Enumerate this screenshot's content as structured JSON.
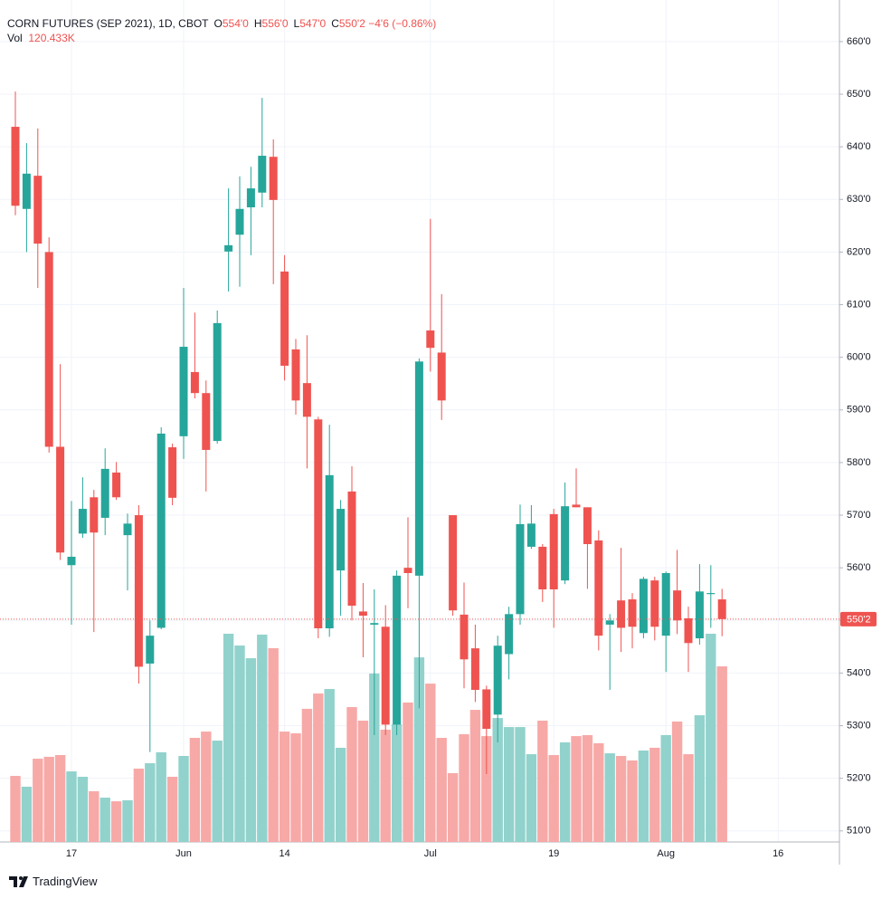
{
  "chart_data": {
    "type": "candlestick",
    "title": "CORN FUTURES (SEP 2021), 1D, CBOT",
    "header": [
      {
        "key": "O",
        "value": "554'0"
      },
      {
        "key": "H",
        "value": "556'0"
      },
      {
        "key": "L",
        "value": "547'0"
      },
      {
        "key": "C",
        "value": "550'2"
      }
    ],
    "change": "−4'6 (−0.86%)",
    "volume_label": "Vol",
    "volume_value": "120.433K",
    "categories": [
      null,
      null,
      null,
      null,
      null,
      "17",
      null,
      null,
      null,
      null,
      null,
      null,
      null,
      null,
      null,
      "Jun",
      null,
      null,
      null,
      null,
      null,
      null,
      null,
      null,
      "14",
      null,
      null,
      null,
      null,
      null,
      null,
      null,
      null,
      null,
      null,
      null,
      null,
      "Jul",
      null,
      null,
      null,
      null,
      null,
      null,
      null,
      null,
      null,
      null,
      "19",
      null,
      null,
      null,
      null,
      null,
      null,
      null,
      null,
      null,
      "Aug",
      null,
      null,
      null,
      null,
      null,
      null,
      null,
      null,
      null,
      "16"
    ],
    "open": [
      643.8,
      628.2,
      634.5,
      620,
      583,
      560.5,
      566.5,
      573.4,
      569.5,
      578.1,
      566.2,
      570,
      541.8,
      548.6,
      582.9,
      585,
      597.2,
      593.2,
      584.1,
      620.1,
      623.3,
      628.5,
      631.3,
      638.1,
      616.3,
      601.5,
      595.1,
      588.2,
      548.5,
      559.5,
      574.5,
      551.7,
      549.2,
      548.8,
      530.2,
      560,
      558.5,
      605.1,
      600.9,
      570,
      551.1,
      544.7,
      536.9,
      532.1,
      543.6,
      551.2,
      564,
      564,
      570.2,
      557.6,
      572,
      571.5,
      565.2,
      549.2,
      553.8,
      554,
      547.6,
      557.6,
      547.1,
      555.7,
      550.4,
      546.6,
      555,
      554,
      null,
      null,
      null,
      null,
      null
    ],
    "high": [
      650.5,
      640.7,
      643.5,
      622.8,
      598.7,
      572.7,
      577.2,
      574.8,
      582.7,
      580.1,
      570.3,
      571.9,
      550,
      586.7,
      583.6,
      613.2,
      608.5,
      595.6,
      608.9,
      632.1,
      634.4,
      636.2,
      649.3,
      641.4,
      619.4,
      603.5,
      604.2,
      588.7,
      587.2,
      572.9,
      579.3,
      557.1,
      555.9,
      552.9,
      559.5,
      569.6,
      599.8,
      626.3,
      612,
      570,
      557.2,
      549.2,
      537.6,
      547.1,
      552.6,
      572,
      571.9,
      564.5,
      571.2,
      576.2,
      578.9,
      571.5,
      567.1,
      551.2,
      563.8,
      555.2,
      558.3,
      558.3,
      559.3,
      563.4,
      552.6,
      560.7,
      560.5,
      556,
      null,
      null,
      null,
      null,
      null
    ],
    "low": [
      627,
      620,
      613.2,
      581.9,
      561.5,
      549.2,
      565.7,
      547.8,
      566.2,
      572.9,
      555.7,
      538,
      525,
      548.3,
      571.9,
      580.7,
      592.2,
      574.5,
      583.6,
      612.5,
      613.4,
      619.4,
      628.5,
      613.9,
      595.6,
      589.1,
      578.9,
      546.6,
      546.9,
      550.9,
      550,
      543,
      528.2,
      528.2,
      528.2,
      552.3,
      533.3,
      597.3,
      588.1,
      550.9,
      537.1,
      534.5,
      520.8,
      526.8,
      538.8,
      549.2,
      563.6,
      553.5,
      548.6,
      556.9,
      571.5,
      556,
      544.3,
      536.8,
      544,
      544.7,
      546.6,
      546.2,
      540.2,
      547.4,
      540.2,
      545.4,
      548.6,
      547,
      null,
      null,
      null,
      null,
      null
    ],
    "close": [
      628.8,
      634.9,
      621.6,
      583,
      562.9,
      562.1,
      571.2,
      566.7,
      578.8,
      573.4,
      568.4,
      541.2,
      547.1,
      585.5,
      573.3,
      602,
      593.2,
      582.4,
      606.5,
      621.3,
      628.2,
      632.1,
      638.3,
      629.9,
      598.4,
      591.8,
      588.7,
      548.5,
      577.6,
      571.2,
      552.8,
      550.9,
      549.5,
      530.2,
      558.5,
      559,
      599.2,
      601.8,
      591.8,
      551.9,
      542.6,
      536.8,
      529.4,
      545.2,
      551.2,
      568.3,
      568.4,
      555.9,
      555.9,
      571.7,
      571.5,
      564.5,
      547.1,
      550,
      548.6,
      548.8,
      557.9,
      548.8,
      559,
      550,
      545.7,
      555.5,
      555.2,
      550.25,
      null,
      null,
      null,
      null,
      null
    ],
    "volume": [
      45.3,
      37.9,
      57.1,
      58.4,
      59.6,
      48.4,
      44.7,
      34.8,
      30.4,
      27.9,
      28.6,
      50.3,
      54,
      61.5,
      44.7,
      59,
      71.4,
      75.7,
      69.5,
      142.8,
      134.7,
      126,
      142.2,
      132.9,
      75.7,
      74.5,
      91.3,
      101.8,
      104.9,
      64.6,
      92.5,
      83.2,
      115.5,
      77,
      80.7,
      95.6,
      126.6,
      108.6,
      71.4,
      47.2,
      73.9,
      90.6,
      72.6,
      85,
      78.8,
      78.8,
      60.2,
      83.2,
      59.6,
      68.3,
      72.6,
      73.3,
      67.7,
      60.8,
      59,
      55.9,
      62.7,
      64.6,
      73.3,
      82.6,
      60.2,
      86.9,
      142.8,
      120.433,
      null,
      null,
      null,
      null,
      null
    ],
    "up_color": "#26a69a",
    "down_color": "#ef5350",
    "up_volume_color": "#92d2cc",
    "down_volume_color": "#f7a9a7",
    "ylim": [
      507.9,
      667.9
    ],
    "yticks": [
      {
        "value": 510,
        "label": "510'0"
      },
      {
        "value": 520,
        "label": "520'0"
      },
      {
        "value": 530,
        "label": "530'0"
      },
      {
        "value": 540,
        "label": "540'0"
      },
      {
        "value": 550,
        "label": "550'0"
      },
      {
        "value": 560,
        "label": "560'0"
      },
      {
        "value": 570,
        "label": "570'0"
      },
      {
        "value": 580,
        "label": "580'0"
      },
      {
        "value": 590,
        "label": "590'0"
      },
      {
        "value": 600,
        "label": "600'0"
      },
      {
        "value": 610,
        "label": "610'0"
      },
      {
        "value": 620,
        "label": "620'0"
      },
      {
        "value": 630,
        "label": "630'0"
      },
      {
        "value": 640,
        "label": "640'0"
      },
      {
        "value": 650,
        "label": "650'0"
      },
      {
        "value": 660,
        "label": "660'0"
      }
    ],
    "last_price": {
      "value": 550.25,
      "label": "550'2"
    },
    "grid": true
  },
  "footer": {
    "brand": "TradingView"
  }
}
